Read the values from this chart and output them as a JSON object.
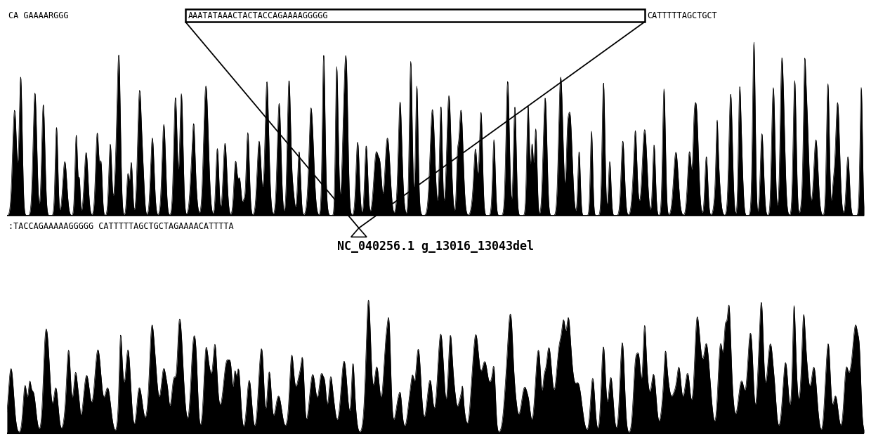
{
  "top_seq_left": "CA GAAAARGGG",
  "top_seq_boxed": "AAATATAAACTACTACCAGAAAAGGGGG",
  "top_seq_right": "CATTTTTAGCTGCT",
  "bottom_seq_of_top": ":TACCAGAAAAAGGGGGCATTTTTAGCTGCTAGAAAACATTTTA",
  "label": "NC_040256.1 g_13016_13043del",
  "background_color": "#ffffff",
  "seq_fontsize": 8.5,
  "label_fontsize": 12,
  "fig_width": 12.4,
  "fig_height": 6.38
}
